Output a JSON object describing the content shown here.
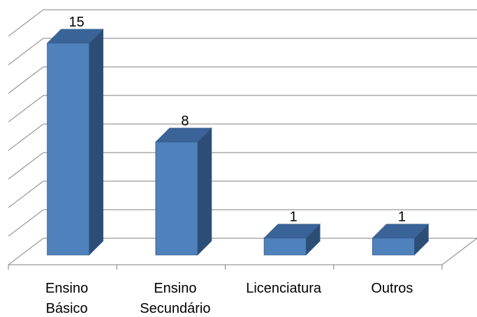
{
  "chart_data": {
    "type": "bar",
    "style": "3d-column",
    "categories": [
      [
        "Ensino",
        "Básico"
      ],
      [
        "Ensino",
        "Secundário"
      ],
      [
        "Licenciatura"
      ],
      [
        "Outros"
      ]
    ],
    "values": [
      15,
      8,
      1,
      1
    ],
    "data_labels": [
      "15",
      "8",
      "1",
      "1"
    ],
    "ylim": [
      0,
      16
    ],
    "y_gridlines": [
      0,
      2,
      4,
      6,
      8,
      10,
      12,
      14,
      16
    ],
    "grid": true,
    "legend": "none",
    "colors": {
      "bar_front": "#4F81BD",
      "bar_side": "#2C4D75",
      "bar_top": "#3A6498",
      "bar_edge": "#385D8A",
      "grid": "#7F7F7F",
      "axis": "#7F7F7F"
    }
  }
}
